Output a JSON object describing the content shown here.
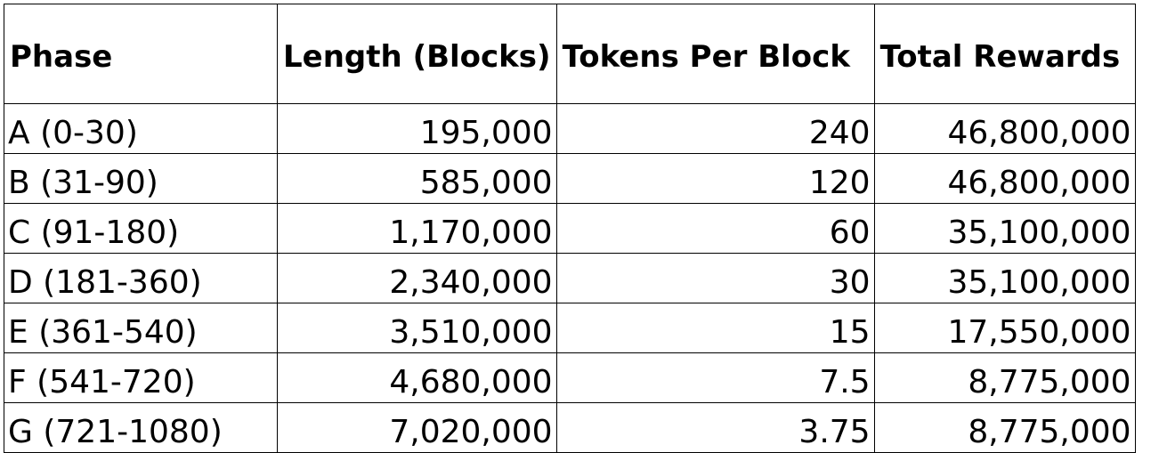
{
  "table": {
    "headers": [
      "Phase",
      "Length (Blocks)",
      "Tokens Per Block",
      "Total Rewards"
    ],
    "rows": [
      {
        "phase": "A (0-30)",
        "length": "195,000",
        "tokens": "240",
        "total": "46,800,000"
      },
      {
        "phase": "B (31-90)",
        "length": "585,000",
        "tokens": "120",
        "total": "46,800,000"
      },
      {
        "phase": "C (91-180)",
        "length": "1,170,000",
        "tokens": "60",
        "total": "35,100,000"
      },
      {
        "phase": "D (181-360)",
        "length": "2,340,000",
        "tokens": "30",
        "total": "35,100,000"
      },
      {
        "phase": "E (361-540)",
        "length": "3,510,000",
        "tokens": "15",
        "total": "17,550,000"
      },
      {
        "phase": "F (541-720)",
        "length": "4,680,000",
        "tokens": "7.5",
        "total": "8,775,000"
      },
      {
        "phase": "G (721-1080)",
        "length": "7,020,000",
        "tokens": "3.75",
        "total": "8,775,000"
      }
    ]
  }
}
